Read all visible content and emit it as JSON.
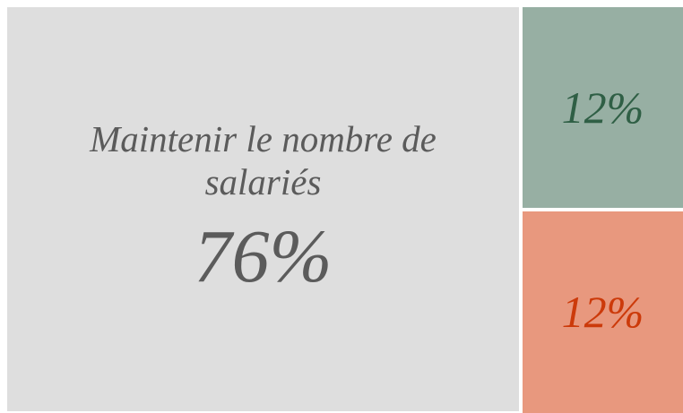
{
  "chart_data": {
    "type": "treemap",
    "categories": [
      "Maintenir le nombre de salariés",
      null,
      null
    ],
    "values": [
      76,
      12,
      12
    ],
    "value_labels": [
      "76%",
      "12%",
      "12%"
    ],
    "colors": [
      "#dedede",
      "#97afa3",
      "#e8987e"
    ],
    "label_colors": [
      "#5b5b5b",
      "#2f5f45",
      "#cc3a0a"
    ]
  }
}
